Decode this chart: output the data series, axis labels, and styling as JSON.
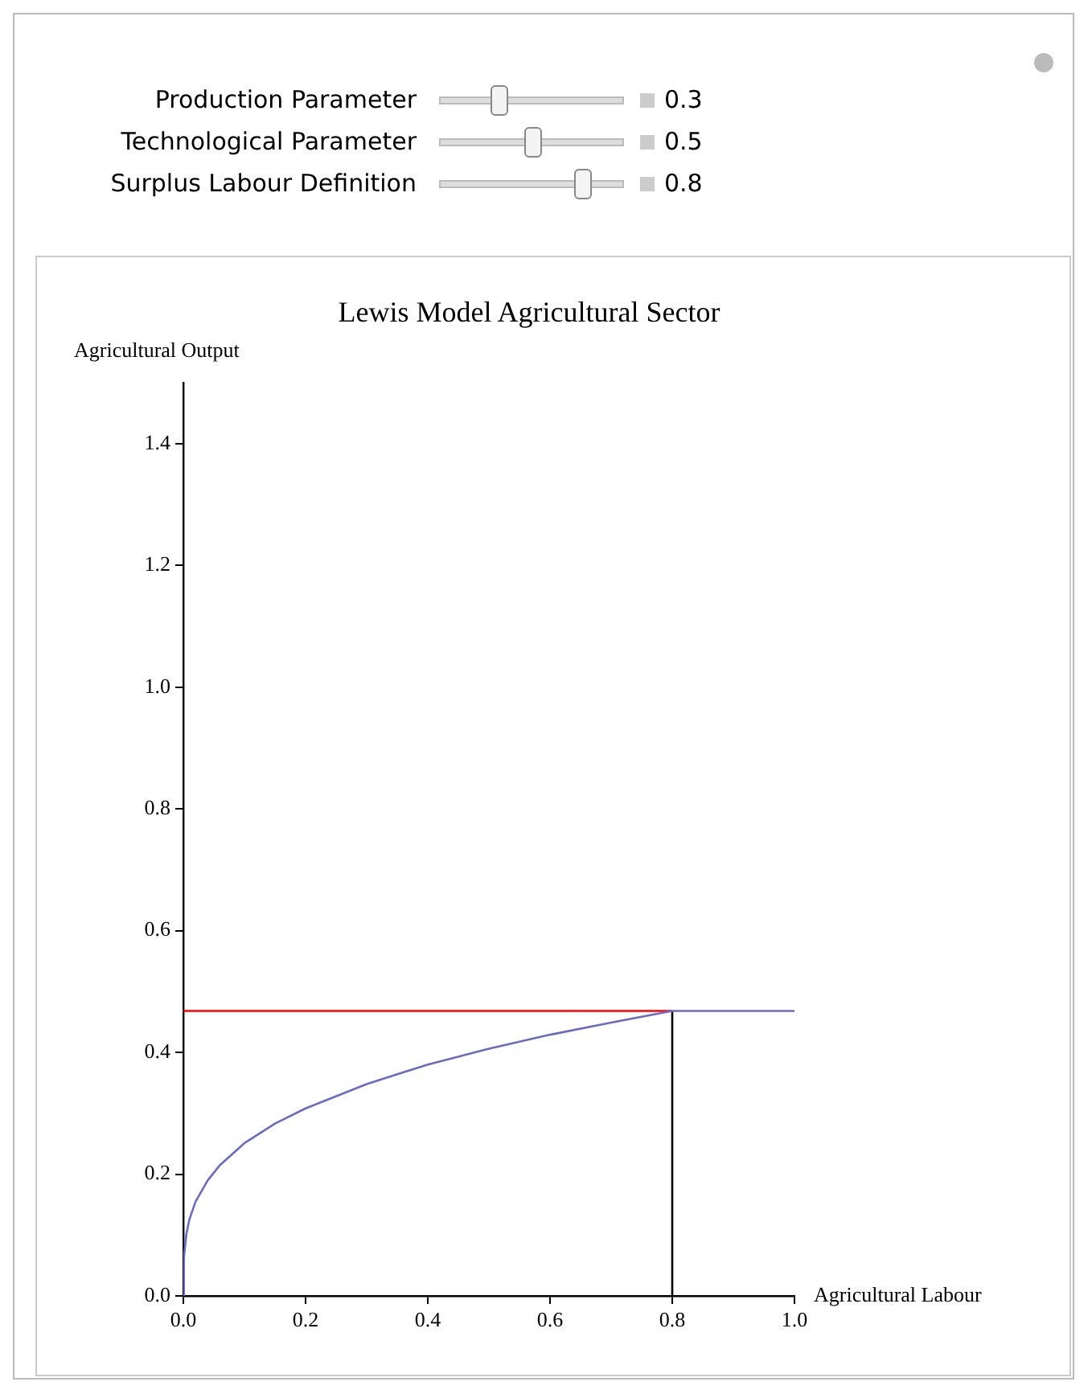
{
  "chart_data": {
    "type": "line",
    "title": "Lewis Model Agricultural Sector",
    "xlabel": "Agricultural Labour",
    "ylabel": "Agricultural Output",
    "annotations": [
      "Production Parameter",
      "0.3",
      "Technological Parameter",
      "0.5",
      "Surplus Labour Definition",
      "0.8"
    ],
    "series": [
      {
        "color": "#6b6bc4",
        "x": [
          0,
          0.001,
          0.005,
          0.01,
          0.02,
          0.04,
          0.06,
          0.1,
          0.15,
          0.2,
          0.3,
          0.4,
          0.5,
          0.6,
          0.7,
          0.8,
          1.0
        ],
        "values": [
          0,
          0.063,
          0.102,
          0.126,
          0.155,
          0.19,
          0.215,
          0.251,
          0.283,
          0.308,
          0.348,
          0.38,
          0.406,
          0.429,
          0.449,
          0.468,
          0.468
        ]
      },
      {
        "color": "#ff0000",
        "x": [
          0,
          0.8
        ],
        "values": [
          0.468,
          0.468
        ]
      },
      {
        "color": "#000000",
        "x": [
          0.8,
          0.8
        ],
        "values": [
          0,
          0.468
        ]
      }
    ],
    "xlim": [
      0,
      1
    ],
    "xticks": [
      {
        "value": 0,
        "label": "0.0"
      },
      0.2,
      0.4,
      0.6,
      0.8,
      {
        "value": 1,
        "label": "1.0"
      }
    ],
    "ylim": [
      0,
      1.5
    ],
    "yticks": [
      {
        "value": 0,
        "label": "0.0"
      },
      0.2,
      0.4,
      0.6,
      0.8,
      {
        "value": 1,
        "label": "1.0"
      },
      1.2,
      1.4
    ],
    "grid": false,
    "legend": false
  }
}
